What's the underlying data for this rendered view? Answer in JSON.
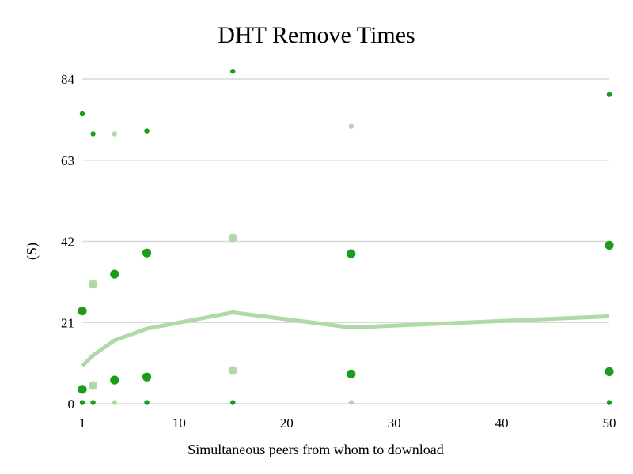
{
  "chart_data": {
    "type": "scatter",
    "title": "DHT Remove Times",
    "xlabel": "Simultaneous peers from whom to download",
    "ylabel": "(S)",
    "xlim": [
      1,
      50
    ],
    "ylim": [
      0,
      84
    ],
    "xticks": [
      1,
      10,
      20,
      30,
      40,
      50
    ],
    "yticks": [
      0,
      21,
      42,
      63,
      84
    ],
    "grid": "horizontal",
    "colors": {
      "dark": "#1a9e1a",
      "light": "#b0d9a8",
      "grid": "#d9d9d9"
    },
    "series": [
      {
        "style": "small-dark",
        "points": [
          {
            "x": 1,
            "y": 75.0
          },
          {
            "x": 2,
            "y": 69.8
          },
          {
            "x": 7,
            "y": 70.6
          },
          {
            "x": 15,
            "y": 86.0
          },
          {
            "x": 50,
            "y": 80.0
          },
          {
            "x": 1,
            "y": 0.3
          },
          {
            "x": 2,
            "y": 0.3
          },
          {
            "x": 7,
            "y": 0.3
          },
          {
            "x": 15,
            "y": 0.3
          },
          {
            "x": 50,
            "y": 0.3
          }
        ]
      },
      {
        "style": "small-light",
        "points": [
          {
            "x": 4,
            "y": 69.8
          },
          {
            "x": 26,
            "y": 71.8
          },
          {
            "x": 4,
            "y": 0.3
          },
          {
            "x": 26,
            "y": 0.3
          }
        ]
      },
      {
        "style": "large-dark",
        "points": [
          {
            "x": 1,
            "y": 24.0
          },
          {
            "x": 4,
            "y": 33.5
          },
          {
            "x": 7,
            "y": 39.0
          },
          {
            "x": 26,
            "y": 38.8
          },
          {
            "x": 50,
            "y": 41.0
          },
          {
            "x": 1,
            "y": 3.7
          },
          {
            "x": 4,
            "y": 6.1
          },
          {
            "x": 7,
            "y": 6.9
          },
          {
            "x": 26,
            "y": 7.7
          },
          {
            "x": 50,
            "y": 8.3
          }
        ]
      },
      {
        "style": "large-light",
        "points": [
          {
            "x": 2,
            "y": 30.9
          },
          {
            "x": 15,
            "y": 42.9
          },
          {
            "x": 2,
            "y": 4.7
          },
          {
            "x": 15,
            "y": 8.6
          }
        ]
      }
    ],
    "line": {
      "style": "light-thick",
      "points": [
        {
          "x": 1,
          "y": 9.8
        },
        {
          "x": 2,
          "y": 12.5
        },
        {
          "x": 4,
          "y": 16.4
        },
        {
          "x": 7,
          "y": 19.4
        },
        {
          "x": 15,
          "y": 23.6
        },
        {
          "x": 26,
          "y": 19.7
        },
        {
          "x": 50,
          "y": 22.6
        }
      ]
    }
  }
}
